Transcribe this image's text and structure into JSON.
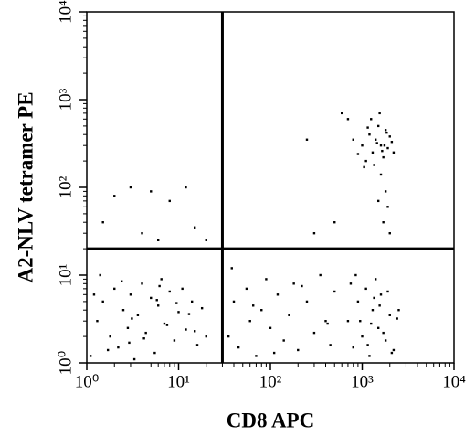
{
  "chart_data": {
    "type": "scatter",
    "xlabel": "CD8 APC",
    "ylabel": "A2-NLV tetramer PE",
    "xscale": "log",
    "yscale": "log",
    "xlim": [
      1,
      10000
    ],
    "ylim": [
      1,
      10000
    ],
    "xticks": [
      {
        "value": 1,
        "label": "10⁰"
      },
      {
        "value": 10,
        "label": "10¹"
      },
      {
        "value": 100,
        "label": "10²"
      },
      {
        "value": 1000,
        "label": "10³"
      },
      {
        "value": 10000,
        "label": "10⁴"
      }
    ],
    "yticks": [
      {
        "value": 1,
        "label": "10⁰"
      },
      {
        "value": 10,
        "label": "10¹"
      },
      {
        "value": 100,
        "label": "10²"
      },
      {
        "value": 1000,
        "label": "10³"
      },
      {
        "value": 10000,
        "label": "10⁴"
      }
    ],
    "gates": {
      "x": 30,
      "y": 20
    },
    "color": "#000000",
    "x": [
      1.1,
      1.3,
      1.5,
      1.8,
      2,
      2.2,
      2.5,
      2.8,
      3,
      3.3,
      3.6,
      4,
      4.4,
      5,
      5.5,
      6,
      6.5,
      7,
      8,
      9,
      10,
      11,
      12,
      14,
      16,
      18,
      20,
      1.2,
      1.7,
      2.4,
      3.1,
      4.2,
      5.8,
      7.5,
      9.5,
      13,
      1.4,
      2.9,
      6.2,
      15,
      35,
      40,
      45,
      55,
      60,
      70,
      80,
      90,
      100,
      120,
      140,
      160,
      180,
      200,
      250,
      300,
      350,
      400,
      450,
      500,
      38,
      65,
      110,
      220,
      420,
      700,
      800,
      900,
      1000,
      1100,
      1200,
      1300,
      1400,
      1500,
      1600,
      1800,
      2000,
      2200,
      2500,
      750,
      950,
      1150,
      1350,
      1700,
      1900,
      2100,
      850,
      1250,
      1550,
      2400,
      1000,
      1100,
      1200,
      1300,
      1400,
      1500,
      1600,
      1700,
      1800,
      1900,
      2000,
      1050,
      1250,
      1450,
      1650,
      1850,
      2100,
      900,
      1350,
      1550,
      1750,
      2200,
      800,
      1150,
      1600,
      1800,
      1900,
      1700,
      2000,
      1500,
      600,
      700,
      300,
      500,
      250,
      2,
      3,
      5,
      8,
      12,
      1.5,
      4,
      15,
      20,
      6
    ],
    "y": [
      1.2,
      3,
      5,
      2,
      7,
      1.5,
      4,
      2.5,
      6,
      1.1,
      3.5,
      8,
      2.2,
      5.5,
      1.3,
      4.5,
      9,
      2.8,
      6.5,
      1.8,
      3.8,
      7,
      2.4,
      5,
      1.6,
      4.2,
      2,
      6,
      1.4,
      8.5,
      3.2,
      1.9,
      5.2,
      2.7,
      4.8,
      3.6,
      10,
      1.7,
      7.5,
      2.3,
      2,
      5,
      1.5,
      7,
      3,
      1.2,
      4,
      9,
      2.5,
      6,
      1.8,
      3.5,
      8,
      1.4,
      5,
      2.2,
      10,
      3,
      1.6,
      6.5,
      12,
      4.5,
      1.3,
      7.5,
      2.8,
      3,
      1.5,
      5,
      2,
      7,
      1.2,
      4,
      9,
      2.5,
      6,
      1.8,
      3.5,
      1.4,
      4,
      8,
      3,
      1.6,
      5.5,
      2.2,
      6.5,
      1.3,
      10,
      2.8,
      4.5,
      3.2,
      300,
      200,
      400,
      250,
      350,
      500,
      300,
      220,
      450,
      280,
      380,
      170,
      600,
      320,
      260,
      420,
      330,
      240,
      180,
      700,
      300,
      250,
      350,
      480,
      140,
      90,
      60,
      40,
      30,
      70,
      700,
      600,
      30,
      40,
      350,
      80,
      100,
      90,
      70,
      100,
      40,
      30,
      35,
      25,
      25
    ]
  }
}
